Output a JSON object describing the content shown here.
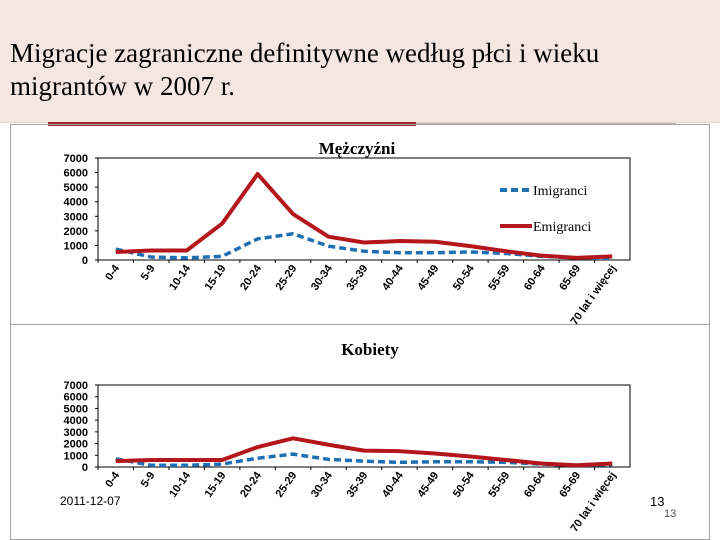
{
  "slide": {
    "title": "Migracje zagraniczne definitywne według płci i wieku migrantów w 2007 r.",
    "footer_date": "2011-12-07",
    "footer_number": "13",
    "footer_number_small": "13"
  },
  "colors": {
    "immigrants": "#1f6fb5",
    "emigrants": "#b3171c",
    "title_band": "#f4e6e1",
    "accent": "#9e2a2b"
  },
  "chart_data": [
    {
      "type": "line",
      "title": "Mężczyźni",
      "categories": [
        "0-4",
        "5-9",
        "10-14",
        "15-19",
        "20-24",
        "25-29",
        "30-34",
        "35-39",
        "40-44",
        "45-49",
        "50-54",
        "55-59",
        "60-64",
        "65-69",
        "70 lat i więcej"
      ],
      "ylim": [
        0,
        7000
      ],
      "yticks": [
        "0",
        "1000",
        "2000",
        "3000",
        "4000",
        "5000",
        "6000",
        "7000"
      ],
      "grid": false,
      "legend": "right",
      "series": [
        {
          "name": "Imigranci",
          "style": "dashed",
          "values": [
            750,
            200,
            150,
            250,
            1450,
            1800,
            950,
            600,
            500,
            500,
            550,
            450,
            250,
            150,
            100
          ]
        },
        {
          "name": "Emigranci",
          "style": "solid",
          "values": [
            550,
            650,
            650,
            2500,
            5900,
            3150,
            1600,
            1200,
            1300,
            1250,
            950,
            600,
            300,
            150,
            250
          ]
        }
      ]
    },
    {
      "type": "line",
      "title": "Kobiety",
      "categories": [
        "0-4",
        "5-9",
        "10-14",
        "15-19",
        "20-24",
        "25-29",
        "30-34",
        "35-39",
        "40-44",
        "45-49",
        "50-54",
        "55-59",
        "60-64",
        "65-69",
        "70 lat i więcej"
      ],
      "ylim": [
        0,
        7000
      ],
      "yticks": [
        "0",
        "1000",
        "2000",
        "3000",
        "4000",
        "5000",
        "6000",
        "7000"
      ],
      "grid": false,
      "series": [
        {
          "name": "Imigranci",
          "style": "dashed",
          "values": [
            700,
            150,
            150,
            250,
            750,
            1100,
            650,
            500,
            400,
            450,
            450,
            400,
            250,
            150,
            200
          ]
        },
        {
          "name": "Emigranci",
          "style": "solid",
          "values": [
            500,
            600,
            600,
            600,
            1700,
            2450,
            1900,
            1400,
            1350,
            1150,
            900,
            600,
            300,
            150,
            300
          ]
        }
      ]
    }
  ]
}
